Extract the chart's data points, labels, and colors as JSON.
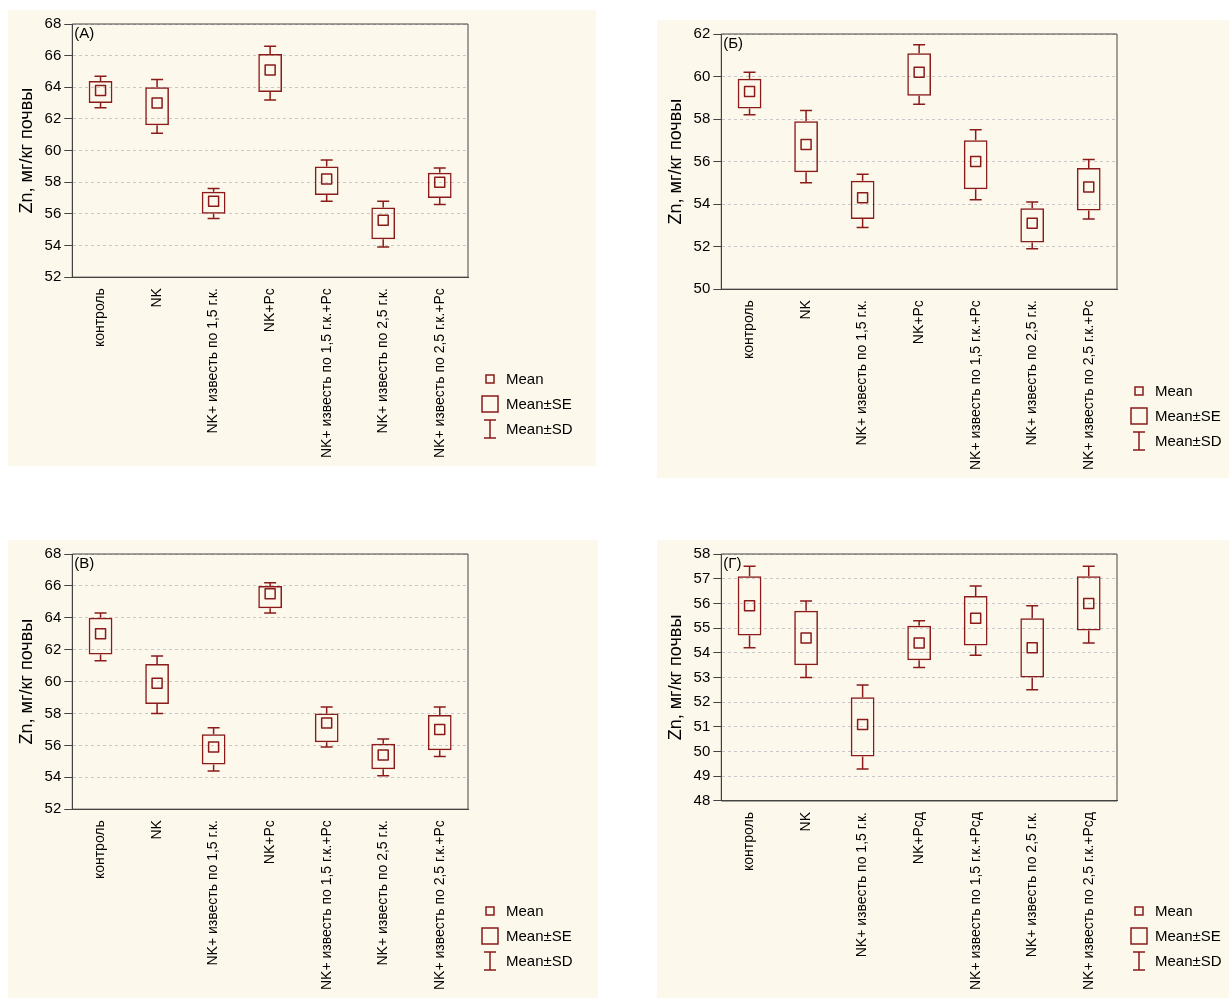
{
  "chart_data": [
    {
      "type": "box",
      "title": "(А)",
      "ylabel": "Zn, мг/кг почвы",
      "color": "#8b1a1a",
      "grid": "y",
      "ylim": [
        52,
        68
      ],
      "yticks": [
        52,
        54,
        56,
        58,
        60,
        62,
        64,
        66,
        68
      ],
      "categories": [
        "контроль",
        "NK",
        "NK+ известь по 1,5 г.к.",
        "NK+Рс",
        "NK+ известь по 1,5 г.к.+Рс",
        "NK+ известь по 2,5 г.к.",
        "NK+ известь по 2,5 г.к.+Рс"
      ],
      "boxes": [
        {
          "low": 62.7,
          "q1": 63.0,
          "median": 63.8,
          "q3": 64.4,
          "high": 64.7
        },
        {
          "low": 61.1,
          "q1": 61.6,
          "median": 63.0,
          "q3": 64.0,
          "high": 64.5
        },
        {
          "low": 55.7,
          "q1": 56.0,
          "median": 56.8,
          "q3": 57.4,
          "high": 57.6
        },
        {
          "low": 63.2,
          "q1": 63.7,
          "median": 65.1,
          "q3": 66.1,
          "high": 66.6
        },
        {
          "low": 56.8,
          "q1": 57.2,
          "median": 58.2,
          "q3": 59.0,
          "high": 59.4
        },
        {
          "low": 53.9,
          "q1": 54.4,
          "median": 55.6,
          "q3": 56.4,
          "high": 56.8
        },
        {
          "low": 56.6,
          "q1": 57.0,
          "median": 58.0,
          "q3": 58.6,
          "high": 58.9
        }
      ],
      "annotations": [
        "Mean",
        "Mean±SE",
        "Mean±SD"
      ]
    },
    {
      "type": "box",
      "title": "(Б)",
      "ylabel": "Zn, мг/кг почвы",
      "color": "#8b1a1a",
      "grid": "y",
      "ylim": [
        50,
        62
      ],
      "yticks": [
        50,
        52,
        54,
        56,
        58,
        60,
        62
      ],
      "categories": [
        "контроль",
        "NK",
        "NK+ известь по 1,5 г.к.",
        "NK+Рс",
        "NK+ известь по 1,5 г.к.+Рс",
        "NK+ известь по 2,5 г.к.",
        "NK+ известь по 2,5 г.к.+Рс"
      ],
      "boxes": [
        {
          "low": 58.2,
          "q1": 58.5,
          "median": 59.3,
          "q3": 59.9,
          "high": 60.2
        },
        {
          "low": 55.0,
          "q1": 55.5,
          "median": 56.8,
          "q3": 57.9,
          "high": 58.4
        },
        {
          "low": 52.9,
          "q1": 53.3,
          "median": 54.3,
          "q3": 55.1,
          "high": 55.4
        },
        {
          "low": 58.7,
          "q1": 59.1,
          "median": 60.2,
          "q3": 61.1,
          "high": 61.5
        },
        {
          "low": 54.2,
          "q1": 54.7,
          "median": 56.0,
          "q3": 57.0,
          "high": 57.5
        },
        {
          "low": 51.9,
          "q1": 52.2,
          "median": 53.1,
          "q3": 53.8,
          "high": 54.1
        },
        {
          "low": 53.3,
          "q1": 53.7,
          "median": 54.8,
          "q3": 55.7,
          "high": 56.1
        }
      ],
      "annotations": [
        "Mean",
        "Mean±SE",
        "Mean±SD"
      ]
    },
    {
      "type": "box",
      "title": "(В)",
      "ylabel": "Zn, мг/кг почвы",
      "color": "#8b1a1a",
      "grid": "y",
      "ylim": [
        52,
        68
      ],
      "yticks": [
        52,
        54,
        56,
        58,
        60,
        62,
        64,
        66,
        68
      ],
      "categories": [
        "контроль",
        "NK",
        "NK+ известь по 1,5 г.к.",
        "NK+Рс",
        "NK+ известь по 1,5 г.к.+Рс",
        "NK+ известь по 2,5 г.к.",
        "NK+ известь по 2,5 г.к.+Рс"
      ],
      "boxes": [
        {
          "low": 61.3,
          "q1": 61.7,
          "median": 63.0,
          "q3": 64.0,
          "high": 64.3
        },
        {
          "low": 58.0,
          "q1": 58.6,
          "median": 59.9,
          "q3": 61.1,
          "high": 61.6
        },
        {
          "low": 54.4,
          "q1": 54.8,
          "median": 55.9,
          "q3": 56.7,
          "high": 57.1
        },
        {
          "low": 64.3,
          "q1": 64.6,
          "median": 65.5,
          "q3": 66.0,
          "high": 66.2
        },
        {
          "low": 55.9,
          "q1": 56.2,
          "median": 57.4,
          "q3": 58.0,
          "high": 58.4
        },
        {
          "low": 54.1,
          "q1": 54.5,
          "median": 55.4,
          "q3": 56.1,
          "high": 56.4
        },
        {
          "low": 55.3,
          "q1": 55.7,
          "median": 57.0,
          "q3": 57.9,
          "high": 58.4
        }
      ],
      "annotations": [
        "Mean",
        "Mean±SE",
        "Mean±SD"
      ]
    },
    {
      "type": "box",
      "title": "(Г)",
      "ylabel": "Zn, мг/кг почвы",
      "color": "#8b1a1a",
      "grid": "y",
      "ylim": [
        48,
        58
      ],
      "yticks": [
        48,
        49,
        50,
        51,
        52,
        53,
        54,
        55,
        56,
        57,
        58
      ],
      "categories": [
        "контроль",
        "NK",
        "NK+ известь по 1,5 г.к.",
        "NK+Рсд",
        "NK+ известь по 1,5 г.к.+Рсд",
        "NK+ известь по 2,5 г.к.",
        "NK+ известь по 2,5 г.к.+Рсд"
      ],
      "boxes": [
        {
          "low": 54.2,
          "q1": 54.7,
          "median": 55.9,
          "q3": 57.1,
          "high": 57.5
        },
        {
          "low": 53.0,
          "q1": 53.5,
          "median": 54.6,
          "q3": 55.7,
          "high": 56.1
        },
        {
          "low": 49.3,
          "q1": 49.8,
          "median": 51.1,
          "q3": 52.2,
          "high": 52.7
        },
        {
          "low": 53.4,
          "q1": 53.7,
          "median": 54.4,
          "q3": 55.1,
          "high": 55.3
        },
        {
          "low": 53.9,
          "q1": 54.3,
          "median": 55.4,
          "q3": 56.3,
          "high": 56.7
        },
        {
          "low": 52.5,
          "q1": 53.0,
          "median": 54.2,
          "q3": 55.4,
          "high": 55.9
        },
        {
          "low": 54.4,
          "q1": 54.9,
          "median": 56.0,
          "q3": 57.1,
          "high": 57.5
        }
      ],
      "annotations": [
        "Mean",
        "Mean±SE",
        "Mean±SD"
      ]
    }
  ]
}
